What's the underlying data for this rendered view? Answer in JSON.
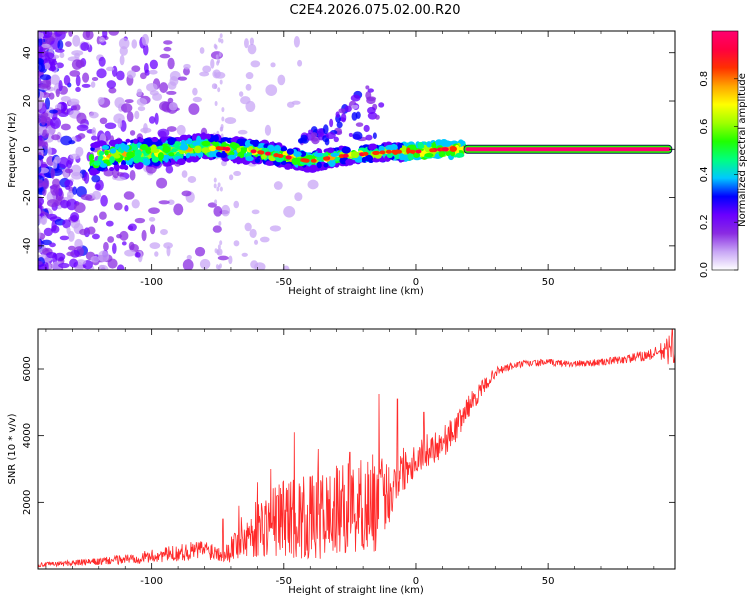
{
  "title": "C2E4.2026.075.02.00.R20",
  "chart_data": [
    {
      "type": "heatmap",
      "panel": "top",
      "xlabel": "Height of straight line (km)",
      "ylabel": "Frequency (Hz)",
      "xlim": [
        -143,
        98
      ],
      "ylim": [
        -50,
        49
      ],
      "x_ticks": [
        -100,
        -50,
        0,
        50
      ],
      "x_tick_labels": [
        "-100",
        "-50",
        "0",
        "50"
      ],
      "y_ticks": [
        -40,
        -20,
        0,
        20,
        40
      ],
      "y_tick_labels": [
        "-40",
        "-20",
        "0",
        "20",
        "40"
      ],
      "colorbar": {
        "label": "Normalized spectral amplitude",
        "range": [
          0,
          1
        ],
        "ticks": [
          0,
          0.2,
          0.4,
          0.6,
          0.8
        ],
        "tick_labels": [
          "0.0",
          "0.2",
          "0.4",
          "0.6",
          "0.8"
        ],
        "colors": [
          "#ffffff",
          "#c8a6f5",
          "#8a2be2",
          "#6a00ff",
          "#0000ff",
          "#00c8ff",
          "#00ff80",
          "#20ff00",
          "#a0ff00",
          "#ffff00",
          "#ffa500",
          "#ff3000",
          "#ff0040",
          "#ff0070"
        ]
      },
      "ridge": {
        "description_points": [
          {
            "x": -123,
            "y": -4
          },
          {
            "x": -110,
            "y": -2
          },
          {
            "x": -95,
            "y": -1
          },
          {
            "x": -80,
            "y": 1
          },
          {
            "x": -70,
            "y": 0
          },
          {
            "x": -60,
            "y": -1
          },
          {
            "x": -50,
            "y": -3
          },
          {
            "x": -40,
            "y": -5
          },
          {
            "x": -30,
            "y": -3
          },
          {
            "x": -20,
            "y": -2
          },
          {
            "x": -10,
            "y": -1
          },
          {
            "x": 0,
            "y": -1
          },
          {
            "x": 10,
            "y": 0
          },
          {
            "x": 20,
            "y": 0
          },
          {
            "x": 97,
            "y": 0
          }
        ],
        "band_start_x": 18,
        "band_end_x": 97,
        "band_value": 0.98
      }
    },
    {
      "type": "line",
      "panel": "bottom",
      "xlabel": "Height of straight line (km)",
      "ylabel": "SNR (10 * v/v)",
      "xlim": [
        -143,
        98
      ],
      "ylim": [
        0,
        7200
      ],
      "x_ticks": [
        -100,
        -50,
        0,
        50
      ],
      "x_tick_labels": [
        "-100",
        "-50",
        "0",
        "50"
      ],
      "y_ticks": [
        2000,
        4000,
        6000
      ],
      "y_tick_labels": [
        "2000",
        "4000",
        "6000"
      ],
      "color": "#ff2a2a",
      "series": [
        {
          "name": "SNR",
          "x": [
            -143,
            -130,
            -120,
            -110,
            -100,
            -90,
            -80,
            -72,
            -68,
            -60,
            -50,
            -40,
            -30,
            -20,
            -15,
            -10,
            -5,
            0,
            5,
            10,
            15,
            20,
            25,
            30,
            35,
            40,
            50,
            60,
            70,
            80,
            90,
            97
          ],
          "mean": [
            120,
            180,
            220,
            300,
            380,
            480,
            600,
            450,
            800,
            1200,
            1600,
            1500,
            1700,
            1900,
            2000,
            2300,
            3000,
            3300,
            3600,
            3800,
            4200,
            4900,
            5400,
            5900,
            6050,
            6150,
            6200,
            6150,
            6200,
            6300,
            6450,
            6600
          ],
          "noise": [
            60,
            90,
            110,
            150,
            200,
            250,
            300,
            250,
            600,
            900,
            1200,
            1300,
            1400,
            1500,
            1500,
            900,
            700,
            500,
            500,
            500,
            400,
            350,
            250,
            150,
            120,
            110,
            100,
            100,
            110,
            130,
            180,
            500
          ],
          "peaks": [
            {
              "x": -73,
              "y": 1500
            },
            {
              "x": -67,
              "y": 1900
            },
            {
              "x": -60,
              "y": 2600
            },
            {
              "x": -55,
              "y": 3000
            },
            {
              "x": -46,
              "y": 4100
            },
            {
              "x": -37,
              "y": 3600
            },
            {
              "x": -25,
              "y": 3500
            },
            {
              "x": -14,
              "y": 5250
            },
            {
              "x": -7,
              "y": 5100
            },
            {
              "x": 3,
              "y": 4700
            },
            {
              "x": 20,
              "y": 5200
            },
            {
              "x": 97,
              "y": 7200
            }
          ]
        }
      ]
    }
  ]
}
